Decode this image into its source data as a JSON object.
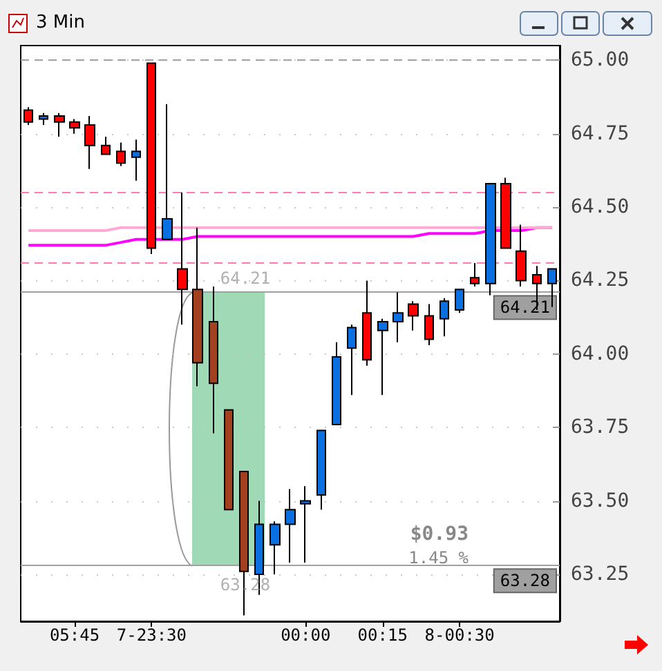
{
  "chart_data": {
    "type": "candlestick",
    "title": "3 Min",
    "categories": [
      null,
      null,
      null,
      "05:45",
      null,
      null,
      null,
      null,
      "7-23:30",
      null,
      null,
      null,
      null,
      null,
      null,
      null,
      null,
      null,
      "00:00",
      null,
      null,
      null,
      null,
      "00:15",
      null,
      null,
      null,
      null,
      "8-00:30",
      null,
      null,
      null,
      null,
      null,
      null
    ],
    "ohlc": [
      [
        64.83,
        64.84,
        64.78,
        64.79
      ],
      [
        64.8,
        64.82,
        64.78,
        64.81
      ],
      [
        64.81,
        64.82,
        64.74,
        64.79
      ],
      [
        64.79,
        64.8,
        64.75,
        64.77
      ],
      [
        64.78,
        64.81,
        64.63,
        64.71
      ],
      [
        64.71,
        64.74,
        64.68,
        64.68
      ],
      [
        64.69,
        64.72,
        64.64,
        64.65
      ],
      [
        64.67,
        64.73,
        64.59,
        64.69
      ],
      [
        64.99,
        64.99,
        64.34,
        64.36
      ],
      [
        64.39,
        64.85,
        64.39,
        64.46
      ],
      [
        64.29,
        64.55,
        64.1,
        64.22
      ],
      [
        64.22,
        64.43,
        63.89,
        63.97
      ],
      [
        64.11,
        64.23,
        63.73,
        63.9
      ],
      [
        63.81,
        63.81,
        63.47,
        63.47
      ],
      [
        63.6,
        63.6,
        63.11,
        63.26
      ],
      [
        63.25,
        63.5,
        63.18,
        63.42
      ],
      [
        63.35,
        63.43,
        63.25,
        63.42
      ],
      [
        63.42,
        63.54,
        63.29,
        63.47
      ],
      [
        63.49,
        63.55,
        63.29,
        63.5
      ],
      [
        63.52,
        63.74,
        63.47,
        63.74
      ],
      [
        63.76,
        64.04,
        63.76,
        63.99
      ],
      [
        64.02,
        64.1,
        63.86,
        64.09
      ],
      [
        64.14,
        64.25,
        63.96,
        63.98
      ],
      [
        64.08,
        64.12,
        63.86,
        64.11
      ],
      [
        64.11,
        64.21,
        64.04,
        64.14
      ],
      [
        64.17,
        64.18,
        64.08,
        64.13
      ],
      [
        64.13,
        64.17,
        64.03,
        64.05
      ],
      [
        64.12,
        64.19,
        64.06,
        64.18
      ],
      [
        64.15,
        64.22,
        64.14,
        64.22
      ],
      [
        64.26,
        64.31,
        64.23,
        64.24
      ],
      [
        64.24,
        64.58,
        64.2,
        64.58
      ],
      [
        64.58,
        64.6,
        64.36,
        64.36
      ],
      [
        64.35,
        64.44,
        64.23,
        64.25
      ],
      [
        64.27,
        64.3,
        64.15,
        64.24
      ],
      [
        64.24,
        64.29,
        64.16,
        64.29
      ]
    ],
    "colors": [
      "#ff0000",
      "#0a6fe0",
      "#ff0000",
      "#ff0000",
      "#ff0000",
      "#ff0000",
      "#ff0000",
      "#0a6fe0",
      "#ff0000",
      "#0a6fe0",
      "#ff0000",
      "#a2401f",
      "#a2401f",
      "#a2401f",
      "#a2401f",
      "#0a6fe0",
      "#0a6fe0",
      "#0a6fe0",
      "#0a6fe0",
      "#0a6fe0",
      "#0a6fe0",
      "#0a6fe0",
      "#ff0000",
      "#0a6fe0",
      "#0a6fe0",
      "#ff0000",
      "#ff0000",
      "#0a6fe0",
      "#0a6fe0",
      "#ff0000",
      "#0a6fe0",
      "#ff0000",
      "#ff0000",
      "#ff0000",
      "#0a6fe0"
    ],
    "series": [
      {
        "type": "line",
        "color": "#ff00ff",
        "values": [
          64.37,
          64.37,
          64.37,
          64.37,
          64.37,
          64.37,
          64.38,
          64.39,
          64.39,
          64.39,
          64.39,
          64.4,
          64.4,
          64.4,
          64.4,
          64.4,
          64.4,
          64.4,
          64.4,
          64.4,
          64.4,
          64.4,
          64.4,
          64.4,
          64.4,
          64.4,
          64.41,
          64.41,
          64.41,
          64.41,
          64.42,
          64.42,
          64.42,
          64.43,
          64.43
        ]
      },
      {
        "type": "line",
        "color": "#ffaad4",
        "values": [
          64.42,
          64.42,
          64.42,
          64.42,
          64.42,
          64.42,
          64.43,
          64.43,
          64.43,
          64.43,
          64.43,
          64.43,
          64.43,
          64.43,
          64.43,
          64.43,
          64.43,
          64.43,
          64.43,
          64.43,
          64.43,
          64.43,
          64.43,
          64.43,
          64.43,
          64.43,
          64.43,
          64.43,
          64.43,
          64.43,
          64.43,
          64.43,
          64.43,
          64.43,
          64.43
        ]
      }
    ],
    "ylim": [
      63.09,
      65.05
    ],
    "yticks": [
      {
        "value": 63.25,
        "label": "63.25"
      },
      {
        "value": 63.5,
        "label": "63.50"
      },
      {
        "value": 63.75,
        "label": "63.75"
      },
      {
        "value": 64,
        "label": "64.00"
      },
      {
        "value": 64.25,
        "label": "64.25"
      },
      {
        "value": 64.5,
        "label": "64.50"
      },
      {
        "value": 64.75,
        "label": "64.75"
      },
      {
        "value": 65,
        "label": "65.00"
      }
    ],
    "ref_lines": [
      {
        "axis": "y",
        "value": 65.0,
        "label": null,
        "color": "#a0a0a0",
        "line_style": "dashed"
      },
      {
        "axis": "y",
        "value": 64.55,
        "label": null,
        "color": "#ff77bb",
        "line_style": "dashed"
      },
      {
        "axis": "y",
        "value": 64.31,
        "label": null,
        "color": "#ff77bb",
        "line_style": "dashed"
      },
      {
        "axis": "y",
        "value": 64.21,
        "label": "64.21",
        "color": "#a0a0a0",
        "line_style": "solid"
      },
      {
        "axis": "y",
        "value": 63.28,
        "label": "63.28",
        "color": "#a0a0a0",
        "line_style": "solid"
      }
    ],
    "annotations": [
      {
        "text": "64.21",
        "y": 64.21
      },
      {
        "text": "63.28",
        "y": 63.28
      },
      "$0.93",
      "1.45 %"
    ],
    "grid": true
  }
}
